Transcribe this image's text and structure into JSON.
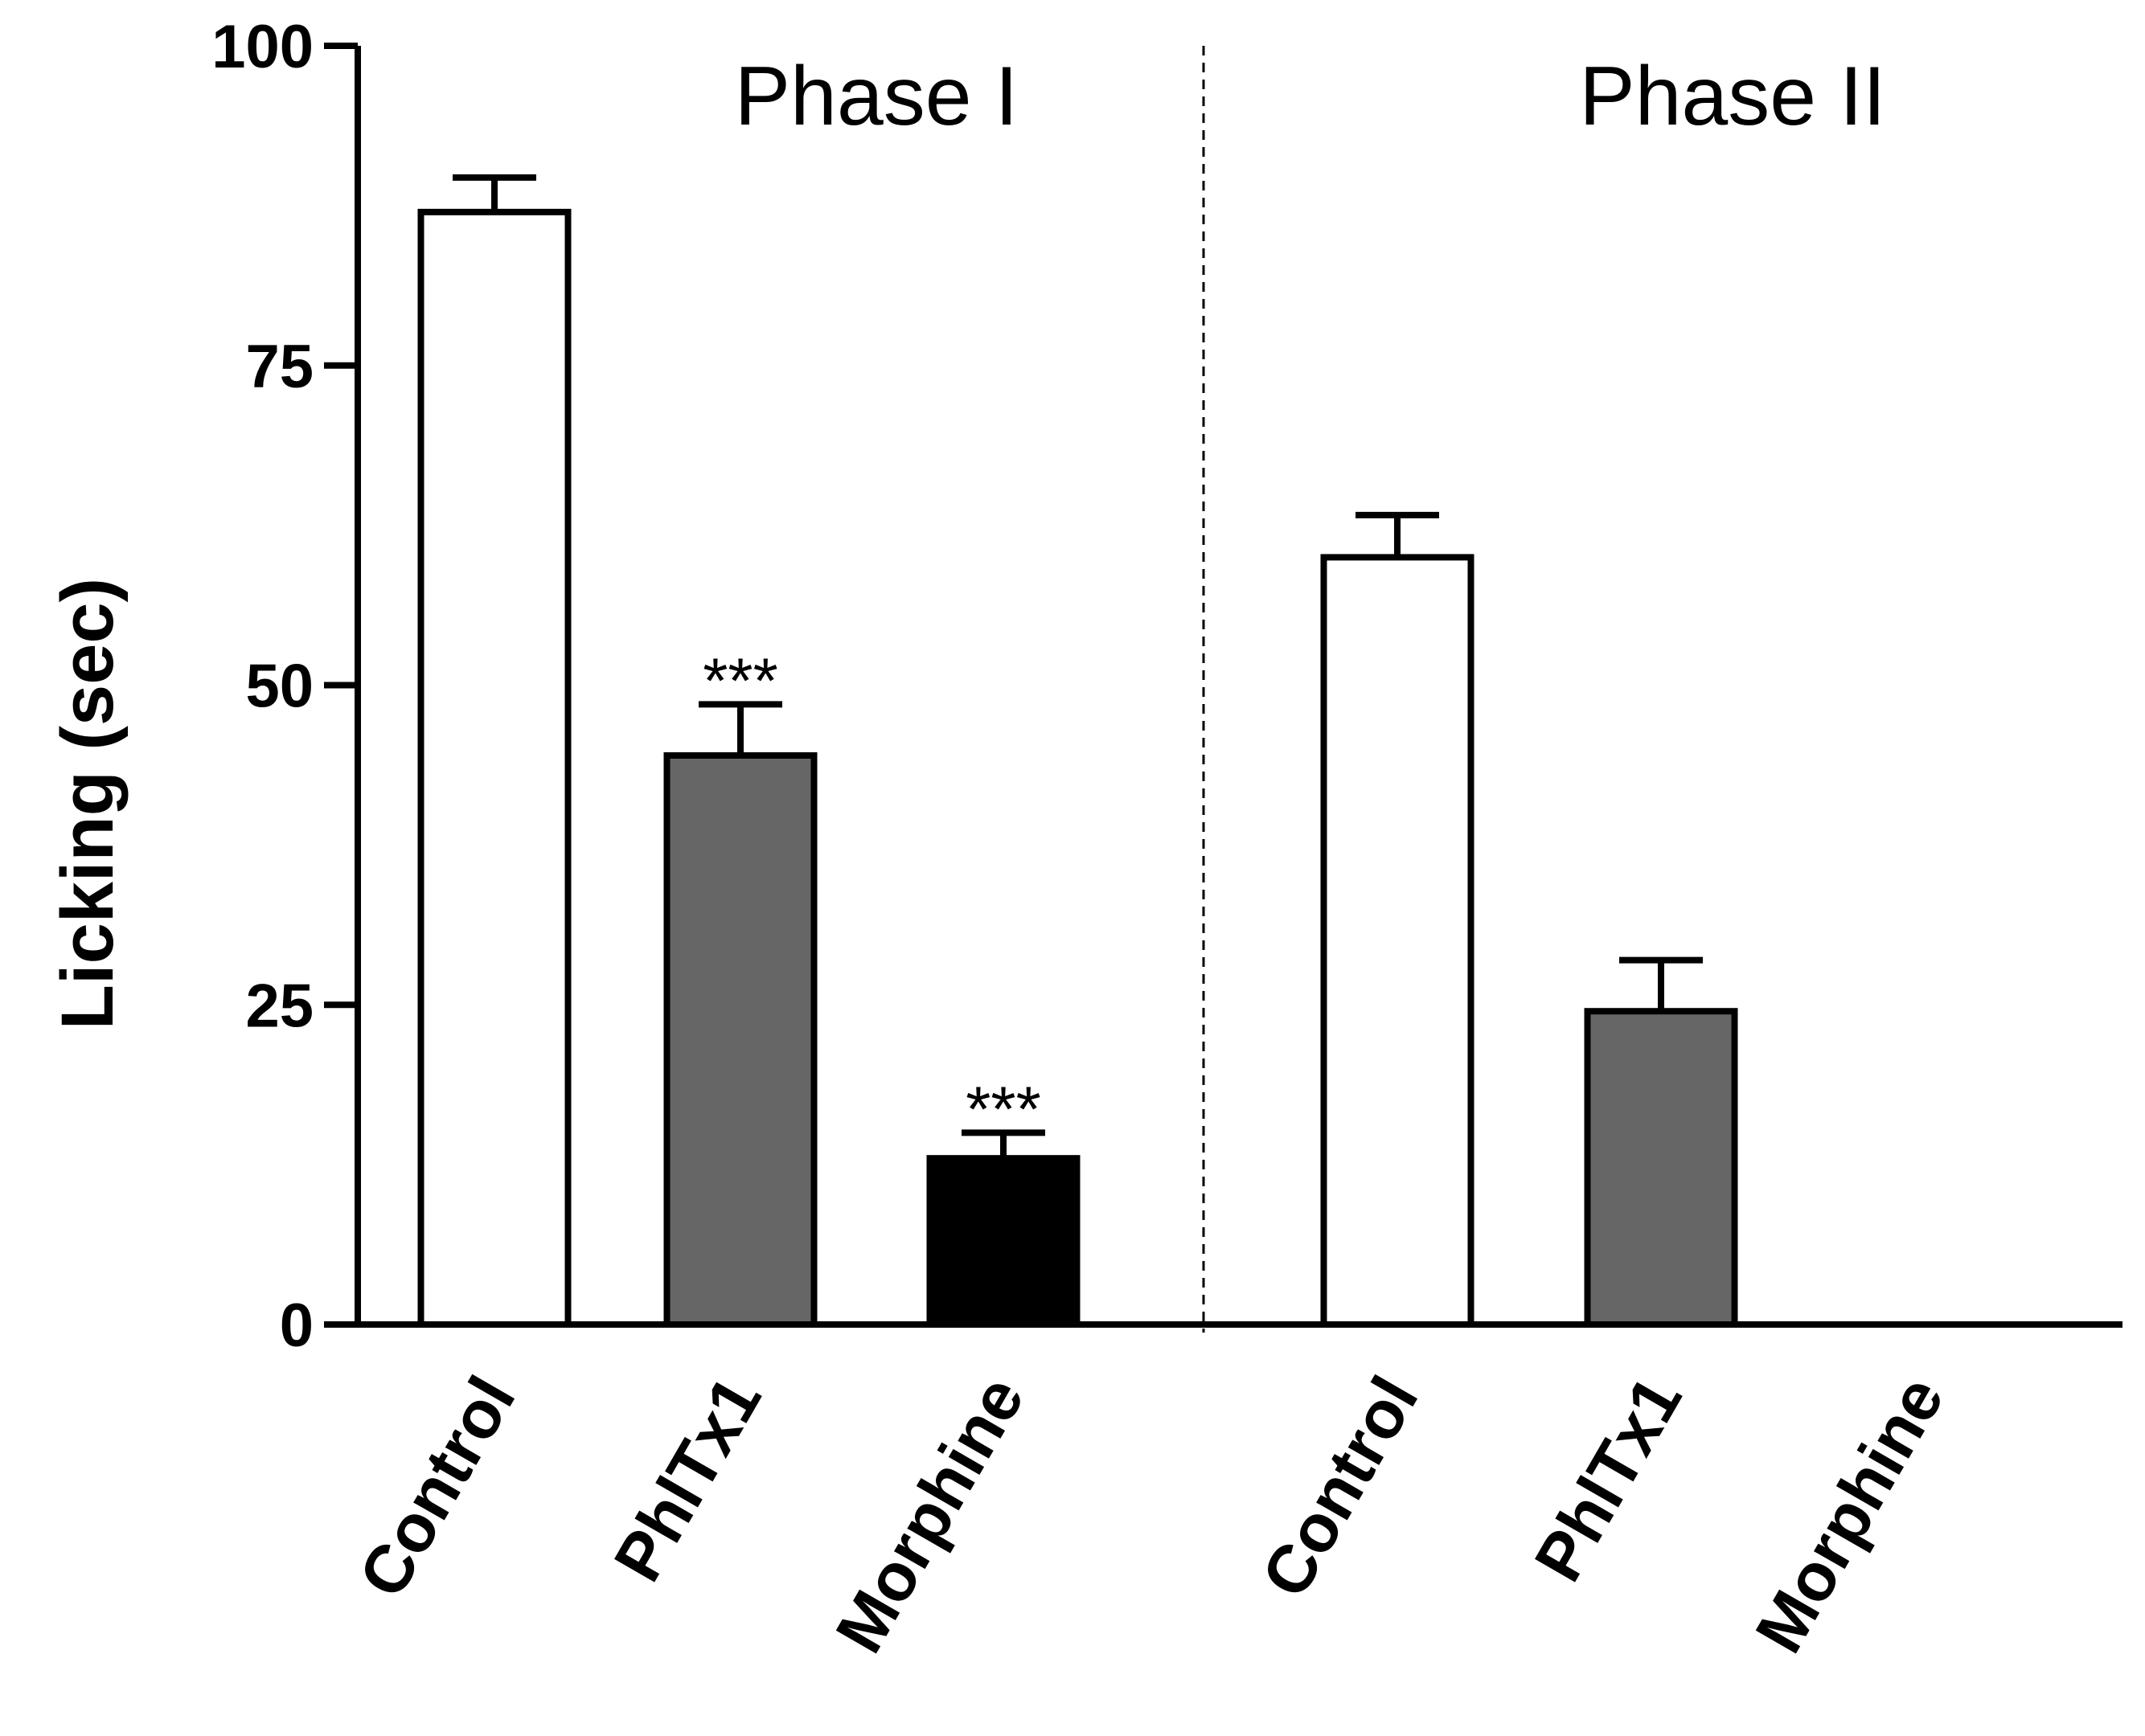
{
  "chart_data": {
    "type": "bar",
    "title": "",
    "xlabel": "",
    "ylabel": "Licking (sec)",
    "ylim": [
      0,
      100
    ],
    "yticks": [
      "0",
      "25",
      "50",
      "75",
      "100"
    ],
    "grid": false,
    "groups": [
      {
        "label": "Phase I",
        "bars": [
          {
            "category": "Control",
            "value": 87,
            "error": 2.7,
            "color": "#ffffff",
            "annotation": ""
          },
          {
            "category": "PhlTx1",
            "value": 44.5,
            "error": 4,
            "color": "#666666",
            "annotation": "***"
          },
          {
            "category": "Morphine",
            "value": 13,
            "error": 2,
            "color": "#000000",
            "annotation": "***"
          }
        ]
      },
      {
        "label": "Phase II",
        "bars": [
          {
            "category": "Control",
            "value": 60,
            "error": 3.3,
            "color": "#ffffff",
            "annotation": ""
          },
          {
            "category": "PhlTx1",
            "value": 24.5,
            "error": 4,
            "color": "#666666",
            "annotation": ""
          },
          {
            "category": "Morphine",
            "value": 0,
            "error": 0,
            "color": "#000000",
            "annotation": ""
          }
        ]
      }
    ]
  }
}
